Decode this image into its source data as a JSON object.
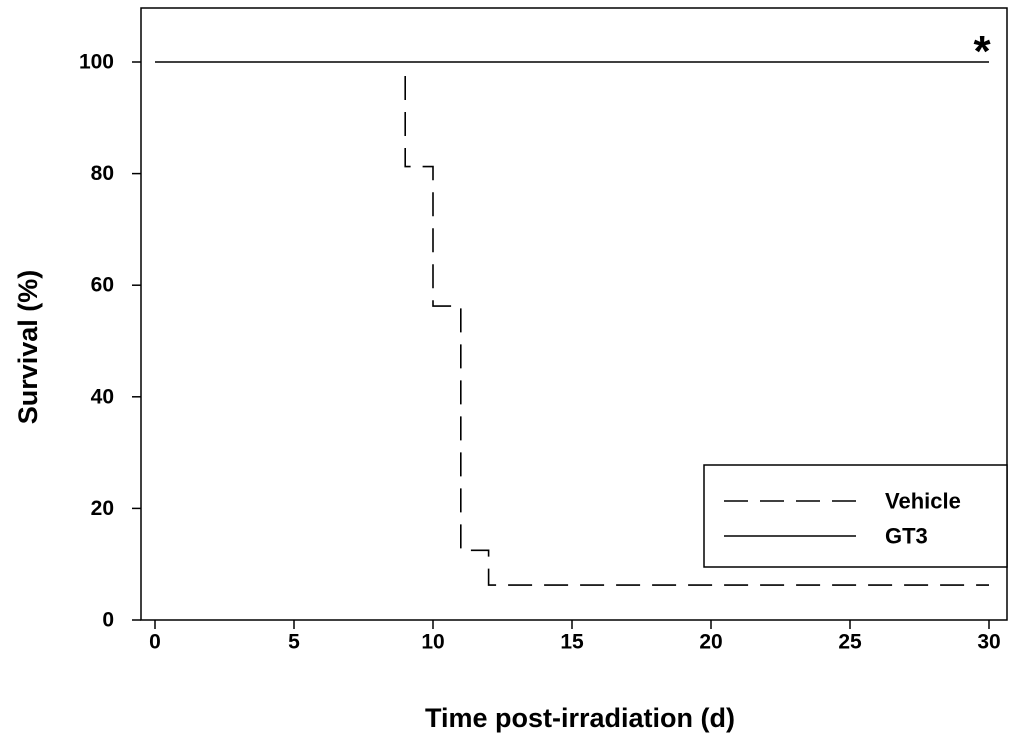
{
  "chart_data": {
    "type": "line",
    "title": "",
    "xlabel": "Time post-irradiation (d)",
    "ylabel": "Survival (%)",
    "xlim": [
      0,
      30
    ],
    "ylim": [
      0,
      100
    ],
    "xticks": [
      "0",
      "5",
      "10",
      "15",
      "20",
      "25",
      "30"
    ],
    "yticks": [
      "0",
      "20",
      "40",
      "60",
      "80",
      "100"
    ],
    "grid": false,
    "legend_position": "bottom-right",
    "series": [
      {
        "name": "Vehicle",
        "style": "dashed",
        "color": "#000000",
        "x": [
          9,
          9,
          10,
          10,
          11,
          11,
          12,
          12,
          30
        ],
        "y": [
          97.5,
          81.25,
          81.25,
          56.25,
          56.25,
          12.5,
          12.5,
          6.25,
          6.25
        ]
      },
      {
        "name": "GT3",
        "style": "solid",
        "color": "#000000",
        "x": [
          0,
          30
        ],
        "y": [
          100,
          100
        ]
      }
    ],
    "annotation": "*"
  }
}
